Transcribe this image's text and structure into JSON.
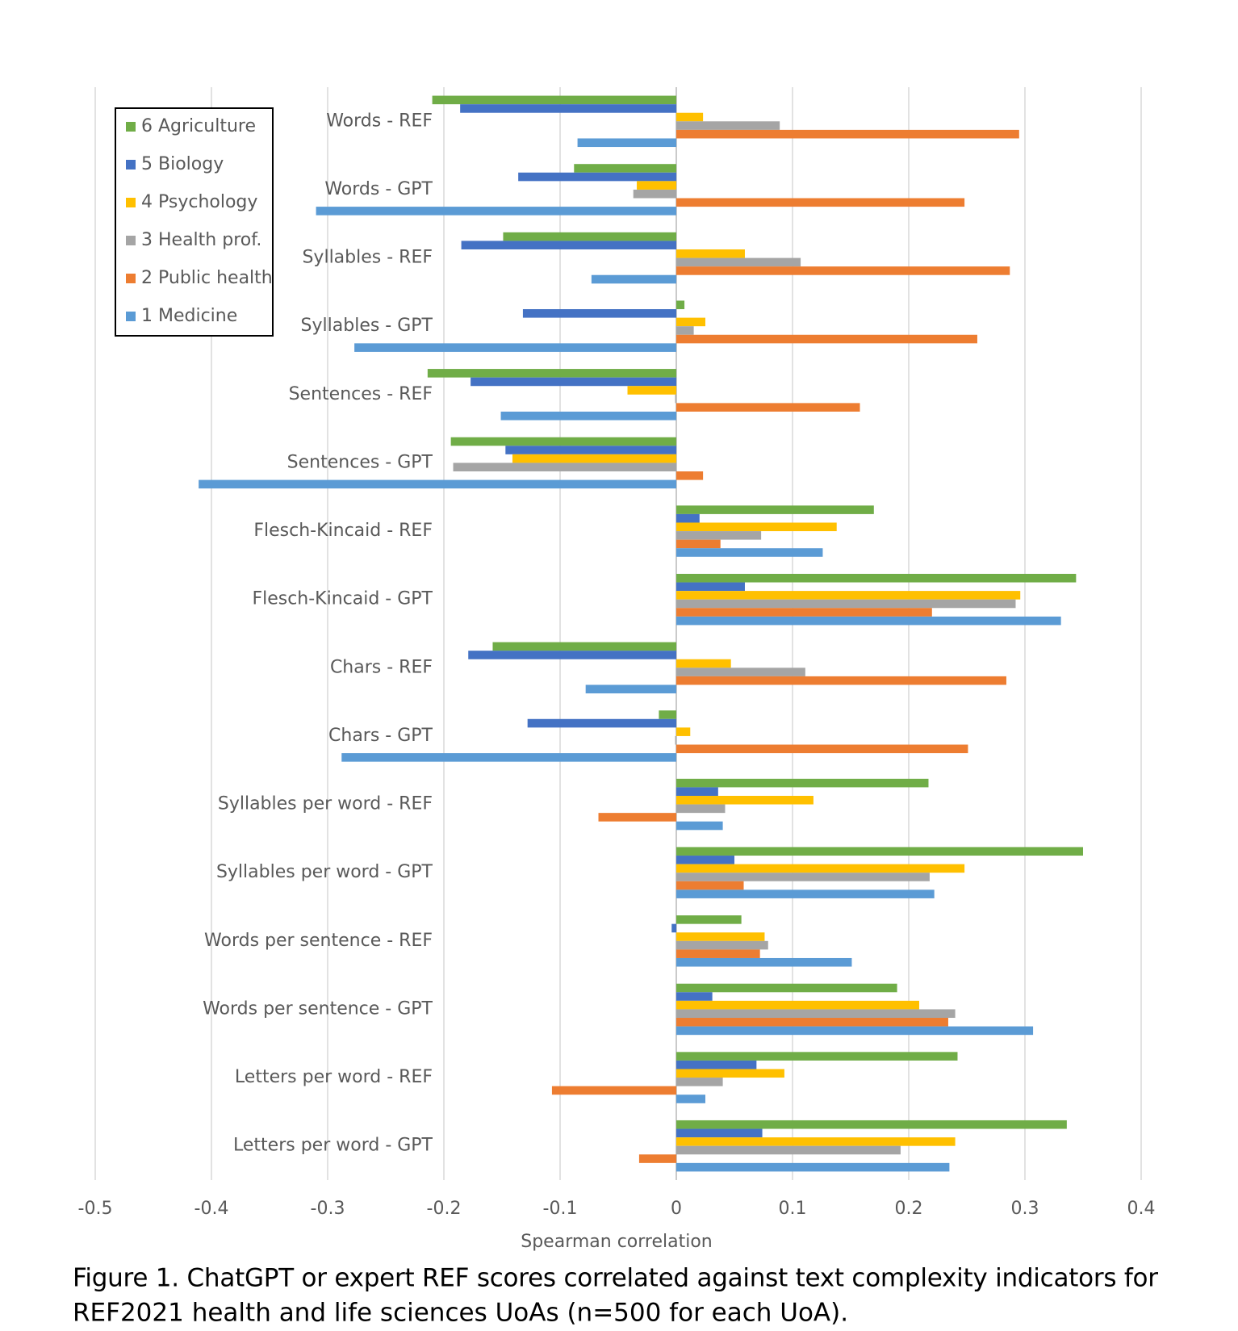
{
  "chart_data": {
    "type": "hbar",
    "categories": [
      "Words - REF",
      "Words - GPT",
      "Syllables - REF",
      "Syllables - GPT",
      "Sentences - REF",
      "Sentences - GPT",
      "Flesch-Kincaid - REF",
      "Flesch-Kincaid - GPT",
      "Chars - REF",
      "Chars - GPT",
      "Syllables per word - REF",
      "Syllables per word - GPT",
      "Words per sentence - REF",
      "Words per sentence - GPT",
      "Letters per word - REF",
      "Letters per word - GPT"
    ],
    "series": [
      {
        "name": "6 Agriculture",
        "color": "#70ad47",
        "values": [
          -0.21,
          -0.088,
          -0.149,
          0.007,
          -0.214,
          -0.194,
          0.17,
          0.344,
          -0.158,
          -0.015,
          0.217,
          0.35,
          0.056,
          0.19,
          0.242,
          0.336
        ]
      },
      {
        "name": "5 Biology",
        "color": "#4472c4",
        "values": [
          -0.186,
          -0.136,
          -0.185,
          -0.132,
          -0.177,
          -0.147,
          0.02,
          0.059,
          -0.179,
          -0.128,
          0.036,
          0.05,
          -0.004,
          0.031,
          0.069,
          0.074
        ]
      },
      {
        "name": "4 Psychology",
        "color": "#ffc000",
        "values": [
          0.023,
          -0.034,
          0.059,
          0.025,
          -0.042,
          -0.141,
          0.138,
          0.296,
          0.047,
          0.012,
          0.118,
          0.248,
          0.076,
          0.209,
          0.093,
          0.24
        ]
      },
      {
        "name": "3 Health prof.",
        "color": "#a5a5a5",
        "values": [
          0.089,
          -0.037,
          0.107,
          0.015,
          -0.001,
          -0.192,
          0.073,
          0.292,
          0.111,
          -0.001,
          0.042,
          0.218,
          0.079,
          0.24,
          0.04,
          0.193
        ]
      },
      {
        "name": "2 Public health",
        "color": "#ed7d31",
        "values": [
          0.295,
          0.248,
          0.287,
          0.259,
          0.158,
          0.023,
          0.038,
          0.22,
          0.284,
          0.251,
          -0.067,
          0.058,
          0.072,
          0.234,
          -0.107,
          -0.032
        ]
      },
      {
        "name": "1 Medicine",
        "color": "#5b9bd5",
        "values": [
          -0.085,
          -0.31,
          -0.073,
          -0.277,
          -0.151,
          -0.411,
          0.126,
          0.331,
          -0.078,
          -0.288,
          0.04,
          0.222,
          0.151,
          0.307,
          0.025,
          0.235
        ]
      }
    ],
    "xlabel": "Spearman correlation",
    "xlim": [
      -0.5,
      0.4
    ],
    "xticks": [
      -0.5,
      -0.4,
      -0.3,
      -0.2,
      -0.1,
      0,
      0.1,
      0.2,
      0.3,
      0.4
    ],
    "grid": true,
    "legend": "upper-left",
    "caption": [
      "Figure 1. ChatGPT or expert REF scores correlated against text complexity indicators for",
      "REF2021 health and life sciences UoAs (n=500 for each UoA)."
    ]
  }
}
